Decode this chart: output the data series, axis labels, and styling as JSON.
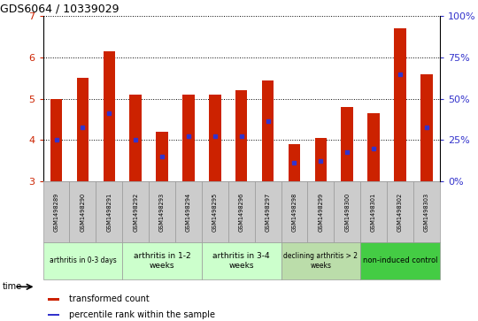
{
  "title": "GDS6064 / 10339029",
  "samples": [
    "GSM1498289",
    "GSM1498290",
    "GSM1498291",
    "GSM1498292",
    "GSM1498293",
    "GSM1498294",
    "GSM1498295",
    "GSM1498296",
    "GSM1498297",
    "GSM1498298",
    "GSM1498299",
    "GSM1498300",
    "GSM1498301",
    "GSM1498302",
    "GSM1498303"
  ],
  "bar_values": [
    5.0,
    5.5,
    6.15,
    5.1,
    4.2,
    5.1,
    5.1,
    5.2,
    5.45,
    3.9,
    4.05,
    4.8,
    4.65,
    6.7,
    5.6
  ],
  "bar_base": 3.0,
  "blue_dot_values": [
    4.0,
    4.3,
    4.65,
    4.0,
    3.6,
    4.1,
    4.1,
    4.1,
    4.45,
    3.45,
    3.5,
    3.7,
    3.8,
    5.6,
    4.3
  ],
  "ylim": [
    3.0,
    7.0
  ],
  "yticks_left": [
    3,
    4,
    5,
    6,
    7
  ],
  "yticks_right": [
    0,
    25,
    50,
    75,
    100
  ],
  "bar_color": "#cc2200",
  "dot_color": "#3333cc",
  "groups": [
    {
      "label": "arthritis in 0-3 days",
      "start": 0,
      "end": 3,
      "color": "#ccffcc",
      "fontsize": 5.5
    },
    {
      "label": "arthritis in 1-2\nweeks",
      "start": 3,
      "end": 6,
      "color": "#ccffcc",
      "fontsize": 6.5
    },
    {
      "label": "arthritis in 3-4\nweeks",
      "start": 6,
      "end": 9,
      "color": "#ccffcc",
      "fontsize": 6.5
    },
    {
      "label": "declining arthritis > 2\nweeks",
      "start": 9,
      "end": 12,
      "color": "#bbddaa",
      "fontsize": 5.5
    },
    {
      "label": "non-induced control",
      "start": 12,
      "end": 15,
      "color": "#44cc44",
      "fontsize": 6.0
    }
  ],
  "legend_red_label": "transformed count",
  "legend_blue_label": "percentile rank within the sample",
  "time_label": "time",
  "ylabel_left_color": "#cc2200",
  "ylabel_right_color": "#3333cc",
  "background_color": "#ffffff",
  "bar_width": 0.45,
  "sample_bg_color": "#cccccc",
  "sample_border_color": "#999999"
}
